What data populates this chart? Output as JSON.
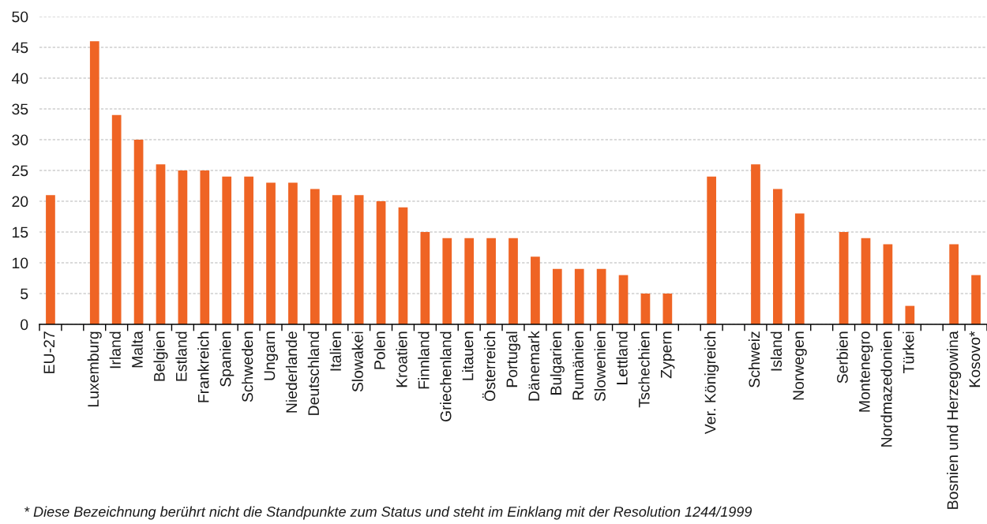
{
  "chart_data": {
    "type": "bar",
    "categories": [
      "EU-27",
      null,
      "Luxemburg",
      "Irland",
      "Malta",
      "Belgien",
      "Estland",
      "Frankreich",
      "Spanien",
      "Schweden",
      "Ungarn",
      "Niederlande",
      "Deutschland",
      "Italien",
      "Slowakei",
      "Polen",
      "Kroatien",
      "Finnland",
      "Griechenland",
      "Litauen",
      "Österreich",
      "Portugal",
      "Dänemark",
      "Bulgarien",
      "Rumänien",
      "Slowenien",
      "Lettland",
      "Tschechien",
      "Zypern",
      null,
      "Ver. Königreich",
      null,
      "Schweiz",
      "Island",
      "Norwegen",
      null,
      "Serbien",
      "Montenegro",
      "Nordmazedonien",
      "Türkei",
      null,
      "Bosnien und Herzegowina",
      "Kosovo*"
    ],
    "values": [
      21,
      null,
      46,
      34,
      30,
      26,
      25,
      25,
      24,
      24,
      23,
      23,
      22,
      21,
      21,
      20,
      19,
      15,
      14,
      14,
      14,
      14,
      11,
      9,
      9,
      9,
      8,
      5,
      5,
      null,
      24,
      null,
      26,
      22,
      18,
      null,
      15,
      14,
      13,
      3,
      null,
      13,
      8
    ],
    "color": "#ef6424",
    "ylim": [
      0,
      50
    ],
    "yticks": [
      0,
      5,
      10,
      15,
      20,
      25,
      30,
      35,
      40,
      45,
      50
    ],
    "grid": "y",
    "annotations": [
      "* Diese Bezeichnung berührt nicht die Standpunkte zum Status und steht im Einklang mit der Resolution 1244/1999"
    ]
  }
}
